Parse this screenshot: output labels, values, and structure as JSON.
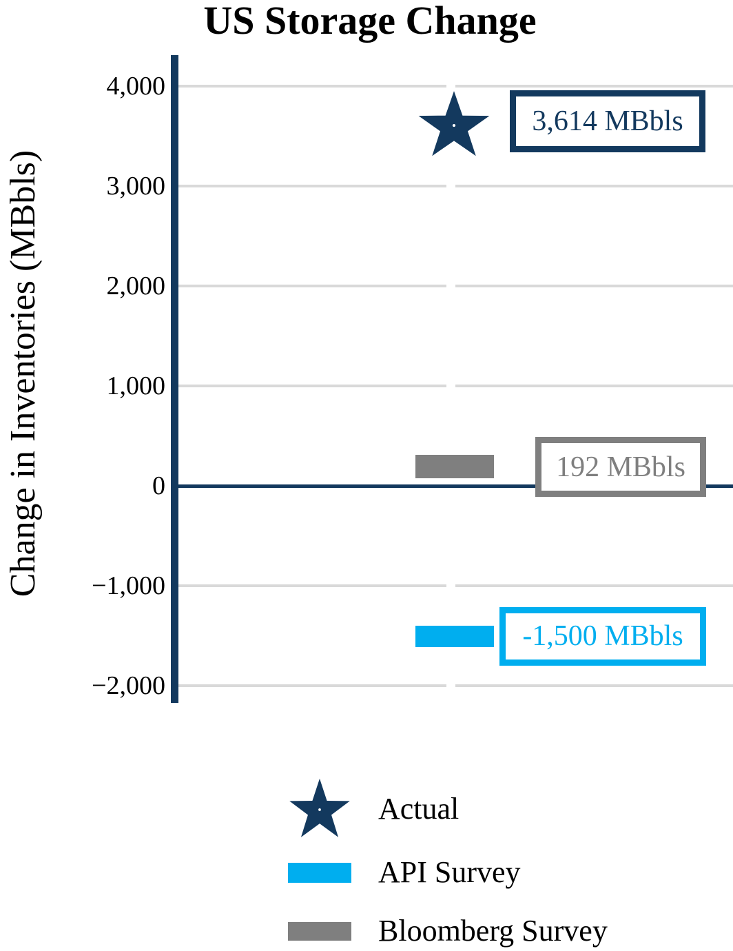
{
  "chart_data": {
    "type": "bar",
    "title": "US Storage Change",
    "ylabel": "Change in Inventories (MBbls)",
    "ylim": [
      -2000,
      4000
    ],
    "yticks": [
      {
        "value": 4000,
        "label": "4,000"
      },
      {
        "value": 3000,
        "label": "3,000"
      },
      {
        "value": 2000,
        "label": "2,000"
      },
      {
        "value": 1000,
        "label": "1,000"
      },
      {
        "value": 0,
        "label": "0"
      },
      {
        "value": -1000,
        "label": "−1,000"
      },
      {
        "value": -2000,
        "label": "−2,000"
      }
    ],
    "grid": true,
    "legend_position": "bottom",
    "series": [
      {
        "name": "Actual",
        "marker": "star",
        "value": 3614,
        "label": "3,614 MBbls",
        "color": "#13395E"
      },
      {
        "name": "API Survey",
        "marker": "bar",
        "value": -1500,
        "label": "-1,500 MBbls",
        "color": "#00AEEF"
      },
      {
        "name": "Bloomberg Survey",
        "marker": "bar",
        "value": 192,
        "label": "192 MBbls",
        "color": "#7F7F7F"
      }
    ],
    "colors": {
      "axis": "#13395E",
      "zero_line": "#13395E",
      "gridline": "#D9D9D9",
      "background": "#FFFFFF"
    }
  }
}
